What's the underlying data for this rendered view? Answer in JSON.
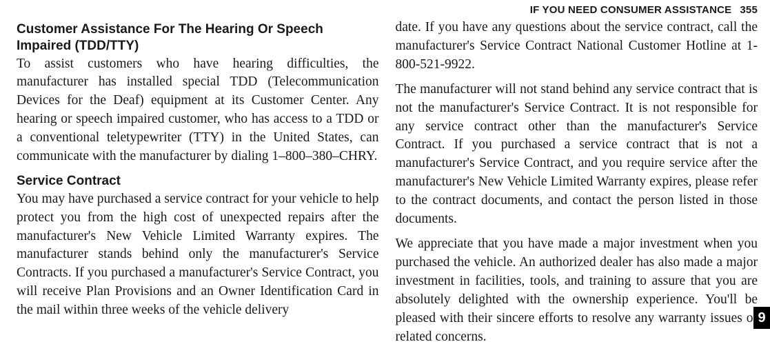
{
  "header": {
    "section_title": "IF YOU NEED CONSUMER ASSISTANCE",
    "page_number": "355"
  },
  "left_column": {
    "h1": "Customer Assistance For The Hearing Or Speech Impaired (TDD/TTY)",
    "p1": "To assist customers who have hearing difficulties, the manufacturer has installed special TDD (Telecommuni­cation Devices for the Deaf) equipment at its Customer Center. Any hearing or speech impaired customer, who has access to a TDD or a conventional teletypewriter (TTY) in the United States, can communicate with the manufacturer by dialing 1–800–380–CHRY.",
    "h2": "Service Contract",
    "p2": "You may have purchased a service contract for your vehicle to help protect you from the high cost of unex­pected repairs after the manufacturer's New Vehicle Limited Warranty expires. The manufacturer stands be­hind only the manufacturer's Service Contracts. If you purchased a manufacturer's Service Contract, you will receive Plan Provisions and an Owner Identification Card in the mail within three weeks of the vehicle delivery"
  },
  "right_column": {
    "p1": "date. If you have any questions about the service con­tract, call the manufacturer's Service Contract National Customer Hotline at 1-800-521-9922.",
    "p2": "The manufacturer will not stand behind any service contract that is not the manufacturer's Service Contract. It is not responsible for any service contract other than the manufacturer's Service Contract. If you purchased a service contract that is not a manufacturer's Service Contract, and you require service after the manufactur­er's New Vehicle Limited Warranty expires, please refer to the contract documents, and contact the person listed in those documents.",
    "p3": "We appreciate that you have made a major investment when you purchased the vehicle. An authorized dealer has also made a major investment in facilities, tools, and training to assure that you are absolutely delighted with the ownership experience. You'll be pleased with their sincere efforts to resolve any warranty issues or related concerns."
  },
  "side_tab": {
    "label": "9"
  },
  "colors": {
    "background": "#ffffff",
    "text": "#1a1a1a",
    "tab_bg": "#000000",
    "tab_fg": "#ffffff"
  }
}
